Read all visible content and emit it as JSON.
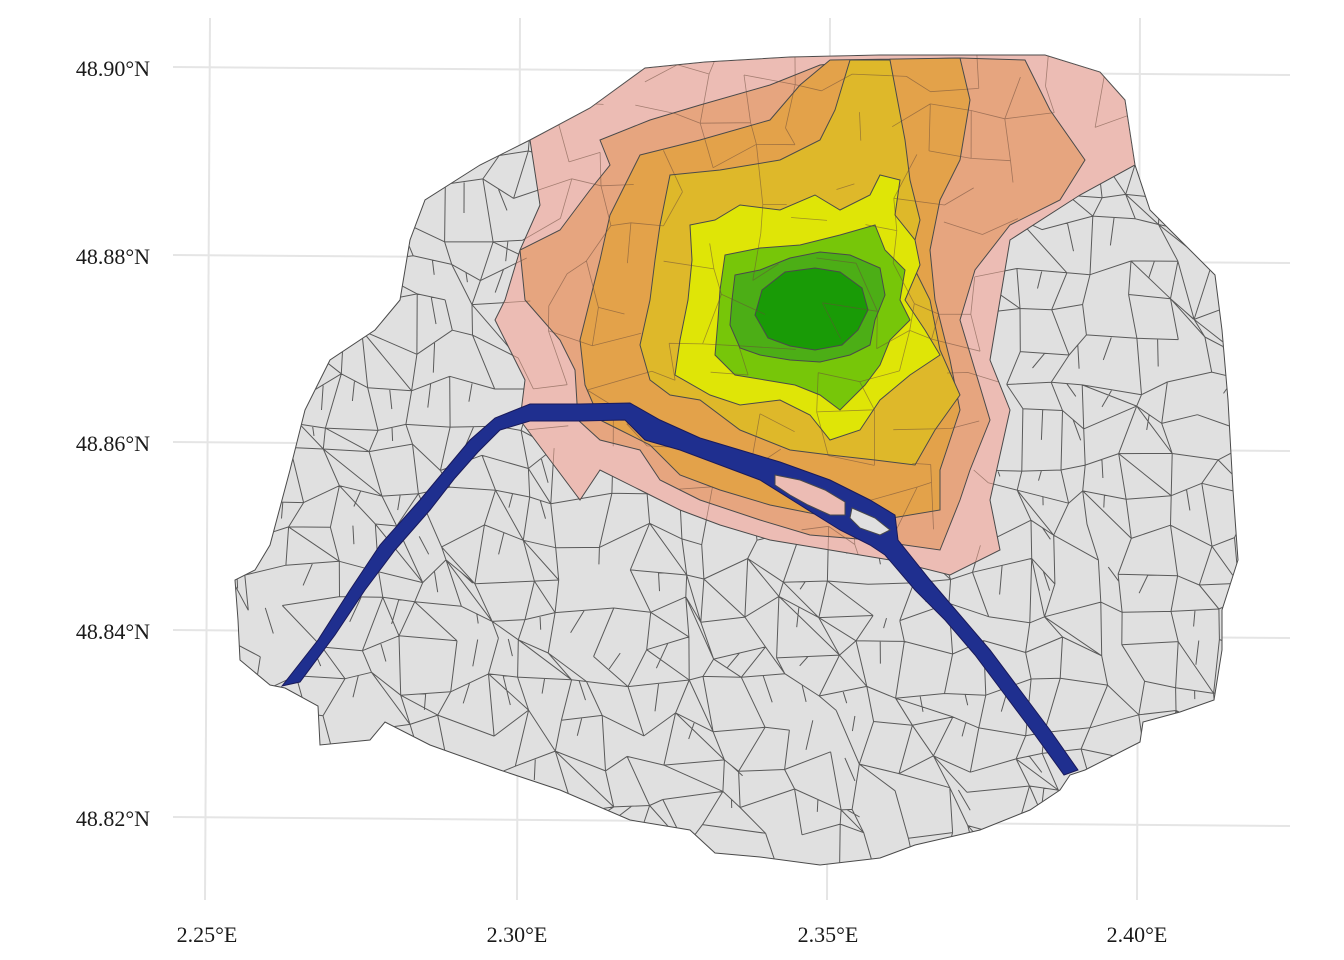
{
  "map": {
    "xaxis": {
      "ticks": [
        "2.25°E",
        "2.30°E",
        "2.35°E",
        "2.40°E"
      ]
    },
    "yaxis": {
      "ticks": [
        "48.90°N",
        "48.88°N",
        "48.86°N",
        "48.84°N",
        "48.82°N"
      ]
    },
    "colors": {
      "background_zone": "#e0e0e0",
      "river": "#1f2f8f",
      "level_1": "#ecbcb4",
      "level_2": "#e6a57f",
      "level_3": "#e3a24a",
      "level_4": "#deb82a",
      "level_5": "#dfe507",
      "level_6": "#77c609",
      "level_7": "#4cae16",
      "level_8": "#199b06"
    },
    "features": {
      "river": "Seine river",
      "zones": [
        "level_1",
        "level_2",
        "level_3",
        "level_4",
        "level_5",
        "level_6",
        "level_7",
        "level_8"
      ]
    }
  }
}
